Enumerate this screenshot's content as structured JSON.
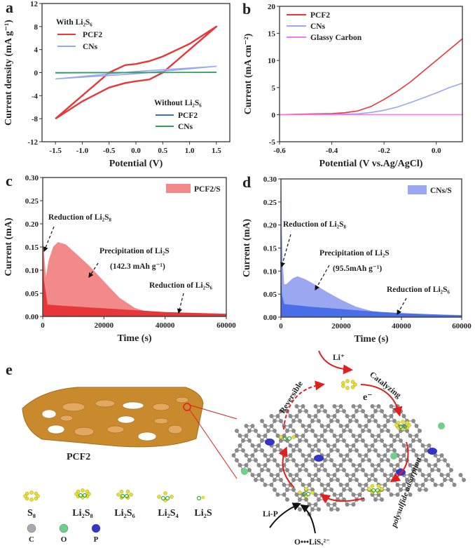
{
  "panels": {
    "a": "a",
    "b": "b",
    "c": "c",
    "d": "d",
    "e": "e"
  },
  "chart_data": [
    {
      "type": "line",
      "panel": "a",
      "xlabel": "Potential (V)",
      "ylabel": "Current density (mA g⁻¹)",
      "xlim": [
        -1.75,
        1.75
      ],
      "ylim": [
        -12,
        12
      ],
      "xticks": [
        "-1.5",
        "-1.0",
        "-0.5",
        "0.0",
        "0.5",
        "1.0",
        "1.5"
      ],
      "yticks": [
        "-12",
        "-8",
        "-4",
        "0",
        "4",
        "8",
        "12"
      ],
      "legend_groups": [
        {
          "title": "With Li₂S₆",
          "entries": [
            "PCF2",
            "CNs"
          ]
        },
        {
          "title": "Without Li₂S₆",
          "entries": [
            "PCF2",
            "CNs"
          ]
        }
      ],
      "series": [
        {
          "name": "PCF2",
          "group": "With Li₂S₆",
          "color": "#e8373a",
          "x": [
            -1.5,
            -1.0,
            -0.5,
            -0.2,
            0.0,
            0.25,
            0.5,
            1.0,
            1.5,
            1.0,
            0.5,
            0.25,
            0.0,
            -0.2,
            -0.5,
            -1.0,
            -1.5
          ],
          "y": [
            -8,
            -4.0,
            0,
            1.3,
            1.5,
            2.0,
            2.8,
            5.0,
            8,
            4.0,
            0,
            -1.2,
            -1.5,
            -1.8,
            -2.6,
            -5.0,
            -8
          ]
        },
        {
          "name": "CNs",
          "group": "With Li₂S₆",
          "color": "#9aa8f0",
          "x": [
            -1.5,
            0,
            1.5,
            0,
            -1.5
          ],
          "y": [
            -1.1,
            0.2,
            1.1,
            -0.2,
            -1.1
          ]
        },
        {
          "name": "PCF2",
          "group": "Without Li₂S₆",
          "color": "#3b6fd8",
          "x": [
            -1.5,
            1.5
          ],
          "y": [
            0,
            0.05
          ]
        },
        {
          "name": "CNs",
          "group": "Without Li₂S₆",
          "color": "#2fa25a",
          "x": [
            -1.5,
            1.5
          ],
          "y": [
            -0.05,
            0.05
          ]
        }
      ]
    },
    {
      "type": "line",
      "panel": "b",
      "xlabel": "Potential (V vs.Ag/AgCl)",
      "ylabel": "Current (mA cm⁻²)",
      "xlim": [
        -0.6,
        0.1
      ],
      "ylim": [
        -5,
        20
      ],
      "xticks": [
        "-0.6",
        "-0.4",
        "-0.2",
        "0.0"
      ],
      "yticks": [
        "-5",
        "0",
        "5",
        "10",
        "15",
        "20"
      ],
      "series": [
        {
          "name": "PCF2",
          "color": "#e8373a",
          "x": [
            -0.6,
            -0.5,
            -0.4,
            -0.35,
            -0.3,
            -0.25,
            -0.2,
            -0.15,
            -0.1,
            -0.05,
            0,
            0.05,
            0.1
          ],
          "y": [
            0,
            0.1,
            0.2,
            0.35,
            0.7,
            1.5,
            2.8,
            4.3,
            6.0,
            8.0,
            10.0,
            12.0,
            14.0
          ]
        },
        {
          "name": "CNs",
          "color": "#9aa8f0",
          "x": [
            -0.6,
            -0.4,
            -0.3,
            -0.25,
            -0.2,
            -0.15,
            -0.1,
            -0.05,
            0,
            0.05,
            0.1
          ],
          "y": [
            0,
            0.05,
            0.15,
            0.4,
            0.8,
            1.4,
            2.2,
            3.1,
            4.0,
            5.0,
            5.8
          ]
        },
        {
          "name": "Glassy Carbon",
          "color": "#f07af0",
          "x": [
            -0.6,
            0.1
          ],
          "y": [
            0,
            0
          ]
        }
      ]
    },
    {
      "type": "area",
      "panel": "c",
      "xlabel": "Time (s)",
      "ylabel": "Current (mA)",
      "xlim": [
        0,
        60000
      ],
      "ylim": [
        0,
        0.3
      ],
      "xticks": [
        "0",
        "20000",
        "40000",
        "60000"
      ],
      "yticks": [
        "0.00",
        "0.05",
        "0.10",
        "0.15",
        "0.20",
        "0.25",
        "0.30"
      ],
      "legend": "PCF2/S",
      "series": [
        {
          "name": "PCF2/S",
          "color": "#f38a8a",
          "x": [
            0,
            300,
            1000,
            2000,
            3500,
            5000,
            7500,
            10000,
            15000,
            20000,
            25000,
            30000,
            33000,
            36000,
            45000,
            60000
          ],
          "y": [
            0.165,
            0.14,
            0.08,
            0.12,
            0.15,
            0.16,
            0.155,
            0.14,
            0.11,
            0.075,
            0.04,
            0.018,
            0.012,
            0.01,
            0.007,
            0.005
          ]
        },
        {
          "color": "#e8373a",
          "x": [
            0,
            300,
            1500,
            10000,
            20000,
            30000,
            40000,
            60000
          ],
          "y": [
            0.14,
            0.08,
            0.025,
            0.021,
            0.017,
            0.013,
            0.009,
            0.005
          ]
        }
      ],
      "annotations": [
        {
          "text": "Reduction of Li₂S₈"
        },
        {
          "text": "Precipitation of Li₂S"
        },
        {
          "text": "(142.3 mAh g⁻¹)"
        },
        {
          "text": "Reduction of Li₂S₆"
        }
      ]
    },
    {
      "type": "area",
      "panel": "d",
      "xlabel": "Time (s)",
      "ylabel": "Current (mA)",
      "xlim": [
        0,
        60000
      ],
      "ylim": [
        0,
        0.3
      ],
      "xticks": [
        "0",
        "20000",
        "40000",
        "60000"
      ],
      "yticks": [
        "0.00",
        "0.05",
        "0.10",
        "0.15",
        "0.20",
        "0.25",
        "0.30"
      ],
      "legend": "CNs/S",
      "series": [
        {
          "name": "CNs/S",
          "color": "#9aa8f2",
          "x": [
            0,
            200,
            500,
            1000,
            2000,
            4000,
            5500,
            8000,
            10000,
            15000,
            20000,
            25000,
            30000,
            35000,
            40000,
            60000
          ],
          "y": [
            0.3,
            0.2,
            0.12,
            0.07,
            0.072,
            0.084,
            0.088,
            0.082,
            0.075,
            0.055,
            0.037,
            0.022,
            0.013,
            0.009,
            0.007,
            0.004
          ]
        },
        {
          "color": "#4a6ee8",
          "x": [
            0,
            200,
            1000,
            10000,
            20000,
            30000,
            40000,
            60000
          ],
          "y": [
            0.2,
            0.05,
            0.028,
            0.022,
            0.017,
            0.012,
            0.008,
            0.003
          ]
        }
      ],
      "annotations": [
        {
          "text": "Reduction of Li₂S₈"
        },
        {
          "text": "Precipitation of Li₂S"
        },
        {
          "text": "(95.5mAh g⁻¹)"
        },
        {
          "text": "Reduction of Li₂S₆"
        }
      ]
    }
  ],
  "schematic": {
    "material_label": "PCF2",
    "species": [
      "S₈",
      "Li₂S₈",
      "Li₂S₆",
      "Li₂S₄",
      "Li₂S"
    ],
    "atoms": [
      "C",
      "O",
      "P"
    ],
    "atom_colors": {
      "C": "#a8a8b0",
      "O": "#6fd08a",
      "P": "#3434c8"
    },
    "labels": {
      "li_ion": "Li⁺",
      "electron": "e⁻",
      "catalyzing": "Catalyzing",
      "reversible": "Reversible",
      "adsorption": "polysulfide adsorption",
      "li_p": "Li-P",
      "o_lisx": "O•••LiSₓ²⁻"
    },
    "colors": {
      "foam": "#c98a2e",
      "arrow": "#e02020",
      "sulfur": "#e8e030",
      "lithium": "#3aa83a"
    }
  }
}
